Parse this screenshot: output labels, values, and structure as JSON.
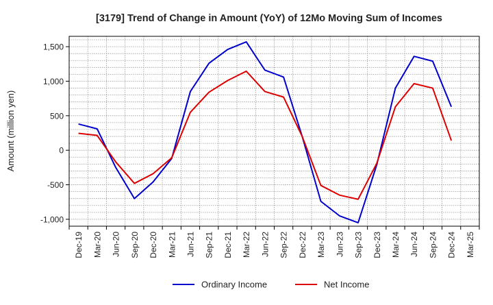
{
  "chart_data": {
    "type": "line",
    "title": "[3179]  Trend of Change in Amount (YoY) of 12Mo Moving Sum of Incomes",
    "xlabel": "",
    "ylabel": "Amount (million yen)",
    "ylim": [
      -1100,
      1650
    ],
    "yticks": [
      -1000,
      -500,
      0,
      500,
      1000,
      1500
    ],
    "ytick_labels": [
      "-1,000",
      "-500",
      "0",
      "500",
      "1,000",
      "1,500"
    ],
    "x": [
      "Dec-19",
      "Mar-20",
      "Jun-20",
      "Sep-20",
      "Dec-20",
      "Mar-21",
      "Jun-21",
      "Sep-21",
      "Dec-21",
      "Mar-22",
      "Jun-22",
      "Sep-22",
      "Dec-22",
      "Mar-23",
      "Jun-23",
      "Sep-23",
      "Dec-23",
      "Mar-24",
      "Jun-24",
      "Sep-24",
      "Dec-24",
      "Mar-25"
    ],
    "grid": true,
    "legend_position": "bottom-center",
    "series": [
      {
        "name": "Ordinary Income",
        "color": "#0000cc",
        "values": [
          380,
          310,
          -250,
          -700,
          -460,
          -120,
          850,
          1260,
          1460,
          1570,
          1160,
          1060,
          200,
          -740,
          -950,
          -1050,
          -210,
          900,
          1360,
          1290,
          630,
          null
        ]
      },
      {
        "name": "Net Income",
        "color": "#dd0000",
        "values": [
          245,
          215,
          -170,
          -480,
          -340,
          -110,
          550,
          840,
          1010,
          1145,
          850,
          770,
          200,
          -510,
          -650,
          -710,
          -190,
          630,
          965,
          900,
          140,
          null
        ]
      }
    ]
  }
}
